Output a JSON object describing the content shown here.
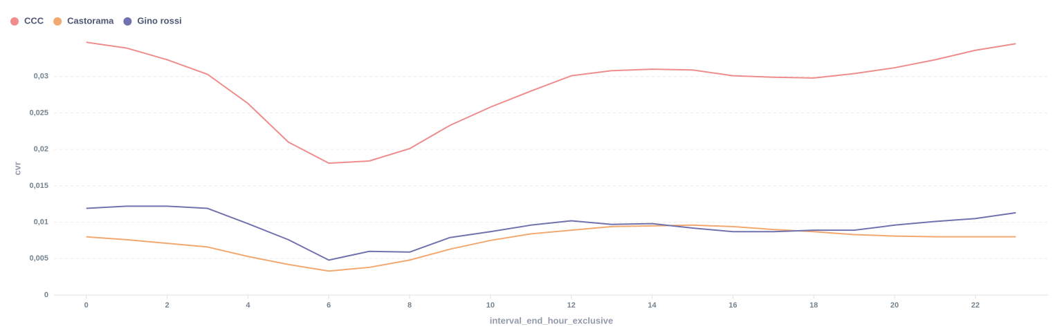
{
  "chart_data": {
    "type": "line",
    "x_label": "interval_end_hour_exclusive",
    "y_label": "cvr",
    "x": [
      0,
      1,
      2,
      3,
      4,
      5,
      6,
      7,
      8,
      9,
      10,
      11,
      12,
      13,
      14,
      15,
      16,
      17,
      18,
      19,
      20,
      21,
      22,
      23
    ],
    "series": [
      {
        "name": "CCC",
        "color": "#ef8c8c",
        "values": [
          0.0347,
          0.0339,
          0.0323,
          0.0303,
          0.0263,
          0.021,
          0.0181,
          0.0184,
          0.0201,
          0.0233,
          0.0258,
          0.028,
          0.0301,
          0.0308,
          0.031,
          0.0309,
          0.0301,
          0.0299,
          0.0298,
          0.0304,
          0.0312,
          0.0323,
          0.0336,
          0.0345
        ]
      },
      {
        "name": "Castorama",
        "color": "#f2a86f",
        "values": [
          0.008,
          0.0076,
          0.0071,
          0.0066,
          0.0053,
          0.0042,
          0.0033,
          0.0038,
          0.0048,
          0.0063,
          0.0075,
          0.0084,
          0.0089,
          0.0094,
          0.0095,
          0.0096,
          0.0094,
          0.009,
          0.0087,
          0.0083,
          0.0081,
          0.008,
          0.008,
          0.008
        ]
      },
      {
        "name": "Gino rossi",
        "color": "#7172ad",
        "values": [
          0.0119,
          0.0122,
          0.0122,
          0.0119,
          0.0098,
          0.0076,
          0.0048,
          0.006,
          0.0059,
          0.0079,
          0.0087,
          0.0096,
          0.0102,
          0.0097,
          0.0098,
          0.0092,
          0.0087,
          0.0087,
          0.0089,
          0.0089,
          0.0096,
          0.0101,
          0.0105,
          0.0113
        ]
      }
    ],
    "xlim": [
      -0.8,
      23.8
    ],
    "xticks": [
      0,
      2,
      4,
      6,
      8,
      10,
      12,
      14,
      16,
      18,
      20,
      22
    ],
    "ylim": [
      0,
      0.035
    ],
    "yticks": [
      0,
      {
        "value": 0.005,
        "label": "0,005"
      },
      {
        "value": 0.01,
        "label": "0,01"
      },
      {
        "value": 0.015,
        "label": "0,015"
      },
      {
        "value": 0.02,
        "label": "0,02"
      },
      {
        "value": 0.025,
        "label": "0,025"
      },
      {
        "value": 0.03,
        "label": "0,03"
      }
    ],
    "grid": true,
    "legend": "top-left"
  }
}
